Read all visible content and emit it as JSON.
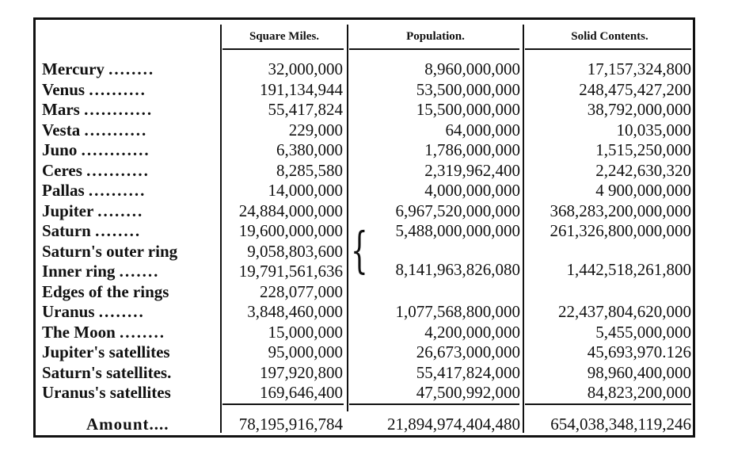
{
  "table": {
    "headers": {
      "square_miles": "Square Miles.",
      "population": "Population.",
      "solid_contents": "Solid Contents."
    },
    "rows": [
      {
        "name": "Mercury",
        "dots": "........",
        "square_miles": "32,000,000",
        "population": "8,960,000,000",
        "solid_contents": "17,157,324,800"
      },
      {
        "name": "Venus",
        "dots": "..........",
        "square_miles": "191,134,944",
        "population": "53,500,000,000",
        "solid_contents": "248,475,427,200"
      },
      {
        "name": "Mars",
        "dots": "............",
        "square_miles": "55,417,824",
        "population": "15,500,000,000",
        "solid_contents": "38,792,000,000"
      },
      {
        "name": "Vesta",
        "dots": "...........",
        "square_miles": "229,000",
        "population": "64,000,000",
        "solid_contents": "10,035,000"
      },
      {
        "name": "Juno",
        "dots": "............",
        "square_miles": "6,380,000",
        "population": "1,786,000,000",
        "solid_contents": "1,515,250,000"
      },
      {
        "name": "Ceres",
        "dots": "...........",
        "square_miles": "8,285,580",
        "population": "2,319,962,400",
        "solid_contents": "2,242,630,320"
      },
      {
        "name": "Pallas",
        "dots": "..........",
        "square_miles": "14,000,000",
        "population": "4,000,000,000",
        "solid_contents": "4 900,000,000"
      },
      {
        "name": "Jupiter",
        "dots": "........",
        "square_miles": "24,884,000,000",
        "population": "6,967,520,000,000",
        "solid_contents": "368,283,200,000,000"
      },
      {
        "name": "Saturn",
        "dots": "........",
        "square_miles": "19,600,000,000",
        "population": "5,488,000,000,000",
        "solid_contents": "261,326,800,000,000"
      },
      {
        "name": "Saturn's outer ring",
        "dots": "",
        "square_miles": "9,058,803,600",
        "population": "",
        "solid_contents": ""
      },
      {
        "name": "Inner ring",
        "dots": ".......",
        "square_miles": "19,791,561,636",
        "population": "",
        "solid_contents": ""
      },
      {
        "name": "Edges of the rings",
        "dots": "",
        "square_miles": "228,077,000",
        "population": "",
        "solid_contents": ""
      },
      {
        "name": "Uranus",
        "dots": "........",
        "square_miles": "3,848,460,000",
        "population": "1,077,568,800,000",
        "solid_contents": "22,437,804,620,000"
      },
      {
        "name": "The Moon",
        "dots": "........",
        "square_miles": "15,000,000",
        "population": "4,200,000,000",
        "solid_contents": "5,455,000,000"
      },
      {
        "name": "Jupiter's satellites",
        "dots": "",
        "square_miles": "95,000,000",
        "population": "26,673,000,000",
        "solid_contents": "45,693,970.126"
      },
      {
        "name": "Saturn's satellites.",
        "dots": "",
        "square_miles": "197,920,800",
        "population": "55,417,824,000",
        "solid_contents": "98,960,400,000"
      },
      {
        "name": "Uranus's satellites",
        "dots": "",
        "square_miles": "169,646,400",
        "population": "47,500,992,000",
        "solid_contents": "84,823,200,000"
      }
    ],
    "rings_combined": {
      "population": "8,141,963,826,080",
      "solid_contents": "1,442,518,261,800"
    },
    "total": {
      "label": "Amount....",
      "square_miles": "78,195,916,784",
      "population": "21,894,974,404,480",
      "solid_contents": "654,038,348,119,246"
    }
  }
}
